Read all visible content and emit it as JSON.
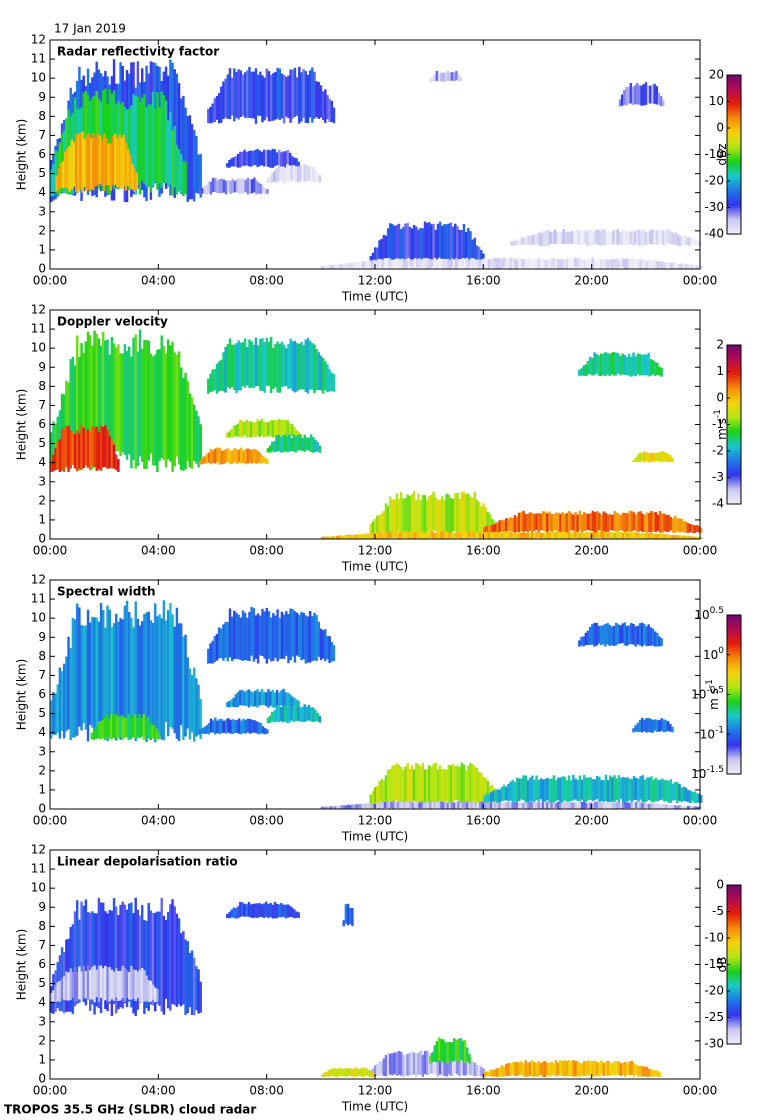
{
  "header": {
    "date": "17 Jan 2019"
  },
  "footer": {
    "text": "TROPOS 35.5 GHz (SLDR) cloud radar"
  },
  "chart_data": [
    {
      "type": "heatmap",
      "title": "Radar reflectivity factor",
      "xlabel": "Time (UTC)",
      "ylabel": "Height (km)",
      "xlim": [
        0,
        24
      ],
      "xticks": [
        {
          "value": 0,
          "label": "00:00"
        },
        {
          "value": 4,
          "label": "04:00"
        },
        {
          "value": 8,
          "label": "08:00"
        },
        {
          "value": 12,
          "label": "12:00"
        },
        {
          "value": 16,
          "label": "16:00"
        },
        {
          "value": 20,
          "label": "20:00"
        },
        {
          "value": 24,
          "label": "00:00"
        }
      ],
      "ylim": [
        0,
        12
      ],
      "yticks": [
        0,
        1,
        2,
        3,
        4,
        5,
        6,
        7,
        8,
        9,
        10,
        11,
        12
      ],
      "zlim": [
        -40,
        20
      ],
      "zticks": [
        -40,
        -30,
        -20,
        -10,
        0,
        10,
        20
      ],
      "zlabel": "dBz",
      "zscale": "linear",
      "colormap": [
        "#eeeef8",
        "#c8c8f0",
        "#3434ee",
        "#1e78e6",
        "#19c8c8",
        "#19d219",
        "#b4e614",
        "#f5d20a",
        "#f58c0a",
        "#e61e0a",
        "#b40a50",
        "#6e0a6e"
      ]
    },
    {
      "type": "heatmap",
      "title": "Doppler velocity",
      "xlabel": "Time (UTC)",
      "ylabel": "Height (km)",
      "xlim": [
        0,
        24
      ],
      "xticks": [
        {
          "value": 0,
          "label": "00:00"
        },
        {
          "value": 4,
          "label": "04:00"
        },
        {
          "value": 8,
          "label": "08:00"
        },
        {
          "value": 12,
          "label": "12:00"
        },
        {
          "value": 16,
          "label": "16:00"
        },
        {
          "value": 20,
          "label": "20:00"
        },
        {
          "value": 24,
          "label": "00:00"
        }
      ],
      "ylim": [
        0,
        12
      ],
      "yticks": [
        0,
        1,
        2,
        3,
        4,
        5,
        6,
        7,
        8,
        9,
        10,
        11,
        12
      ],
      "zlim": [
        -4,
        2
      ],
      "zticks": [
        -4,
        -3,
        -2,
        -1,
        0,
        1,
        2
      ],
      "zlabel": "m s^-1",
      "zscale": "linear",
      "colormap": [
        "#eeeef8",
        "#c8c8f0",
        "#3434ee",
        "#1e78e6",
        "#19c8c8",
        "#19d219",
        "#b4e614",
        "#f5d20a",
        "#f58c0a",
        "#e61e0a",
        "#b40a50",
        "#6e0a6e"
      ]
    },
    {
      "type": "heatmap",
      "title": "Spectral width",
      "xlabel": "Time (UTC)",
      "ylabel": "Height (km)",
      "xlim": [
        0,
        24
      ],
      "xticks": [
        {
          "value": 0,
          "label": "00:00"
        },
        {
          "value": 4,
          "label": "04:00"
        },
        {
          "value": 8,
          "label": "08:00"
        },
        {
          "value": 12,
          "label": "12:00"
        },
        {
          "value": 16,
          "label": "16:00"
        },
        {
          "value": 20,
          "label": "20:00"
        },
        {
          "value": 24,
          "label": "00:00"
        }
      ],
      "ylim": [
        0,
        12
      ],
      "yticks": [
        0,
        1,
        2,
        3,
        4,
        5,
        6,
        7,
        8,
        9,
        10,
        11,
        12
      ],
      "zlim": [
        -1.5,
        0.5
      ],
      "zticks": [
        {
          "value": -1.5,
          "label": "10^-1.5"
        },
        {
          "value": -1,
          "label": "10^-1"
        },
        {
          "value": -0.5,
          "label": "10^-0.5"
        },
        {
          "value": 0,
          "label": "10^0"
        },
        {
          "value": 0.5,
          "label": "10^0.5"
        }
      ],
      "zlabel": "m s^-1",
      "zscale": "log",
      "colormap": [
        "#eeeef8",
        "#c8c8f0",
        "#3434ee",
        "#1e78e6",
        "#19c8c8",
        "#19d219",
        "#b4e614",
        "#f5d20a",
        "#f58c0a",
        "#e61e0a",
        "#b40a50",
        "#6e0a6e"
      ]
    },
    {
      "type": "heatmap",
      "title": "Linear depolarisation ratio",
      "xlabel": "Time (UTC)",
      "ylabel": "Height (km)",
      "xlim": [
        0,
        24
      ],
      "xticks": [
        {
          "value": 0,
          "label": "00:00"
        },
        {
          "value": 4,
          "label": "04:00"
        },
        {
          "value": 8,
          "label": "08:00"
        },
        {
          "value": 12,
          "label": "12:00"
        },
        {
          "value": 16,
          "label": "16:00"
        },
        {
          "value": 20,
          "label": "20:00"
        },
        {
          "value": 24,
          "label": "00:00"
        }
      ],
      "ylim": [
        0,
        12
      ],
      "yticks": [
        0,
        1,
        2,
        3,
        4,
        5,
        6,
        7,
        8,
        9,
        10,
        11,
        12
      ],
      "zlim": [
        -30,
        0
      ],
      "zticks": [
        -30,
        -25,
        -20,
        -15,
        -10,
        -5,
        0
      ],
      "zlabel": "dB",
      "zscale": "linear",
      "colormap": [
        "#eeeef8",
        "#c8c8f0",
        "#3434ee",
        "#1e78e6",
        "#19c8c8",
        "#19d219",
        "#b4e614",
        "#f5d20a",
        "#f58c0a",
        "#e61e0a",
        "#b40a50",
        "#6e0a6e"
      ]
    }
  ]
}
